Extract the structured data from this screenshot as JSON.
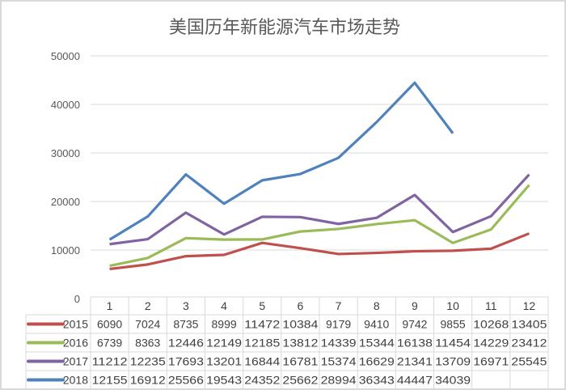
{
  "chart_data": {
    "type": "line",
    "title": "美国历年新能源汽车市场走势",
    "categories": [
      "1",
      "2",
      "3",
      "4",
      "5",
      "6",
      "7",
      "8",
      "9",
      "10",
      "11",
      "12"
    ],
    "ylim": [
      0,
      50000
    ],
    "yticks": [
      "0",
      "10000",
      "20000",
      "30000",
      "40000",
      "50000"
    ],
    "grid": true,
    "legend": "data-table-bottom",
    "series": [
      {
        "name": "2015",
        "color": "#c0504d",
        "values": [
          6090,
          7024,
          8735,
          8999,
          11472,
          10384,
          9179,
          9410,
          9742,
          9855,
          10268,
          13405
        ]
      },
      {
        "name": "2016",
        "color": "#9bbb59",
        "values": [
          6739,
          8363,
          12446,
          12149,
          12185,
          13812,
          14339,
          15344,
          16138,
          11454,
          14229,
          23412
        ]
      },
      {
        "name": "2017",
        "color": "#8064a2",
        "values": [
          11212,
          12235,
          17693,
          13201,
          16844,
          16781,
          15374,
          16629,
          21341,
          13709,
          16971,
          25545
        ]
      },
      {
        "name": "2018",
        "color": "#4f81bd",
        "values": [
          12155,
          16912,
          25566,
          19543,
          24352,
          25662,
          28994,
          36343,
          44447,
          34039,
          null,
          null
        ]
      }
    ]
  }
}
